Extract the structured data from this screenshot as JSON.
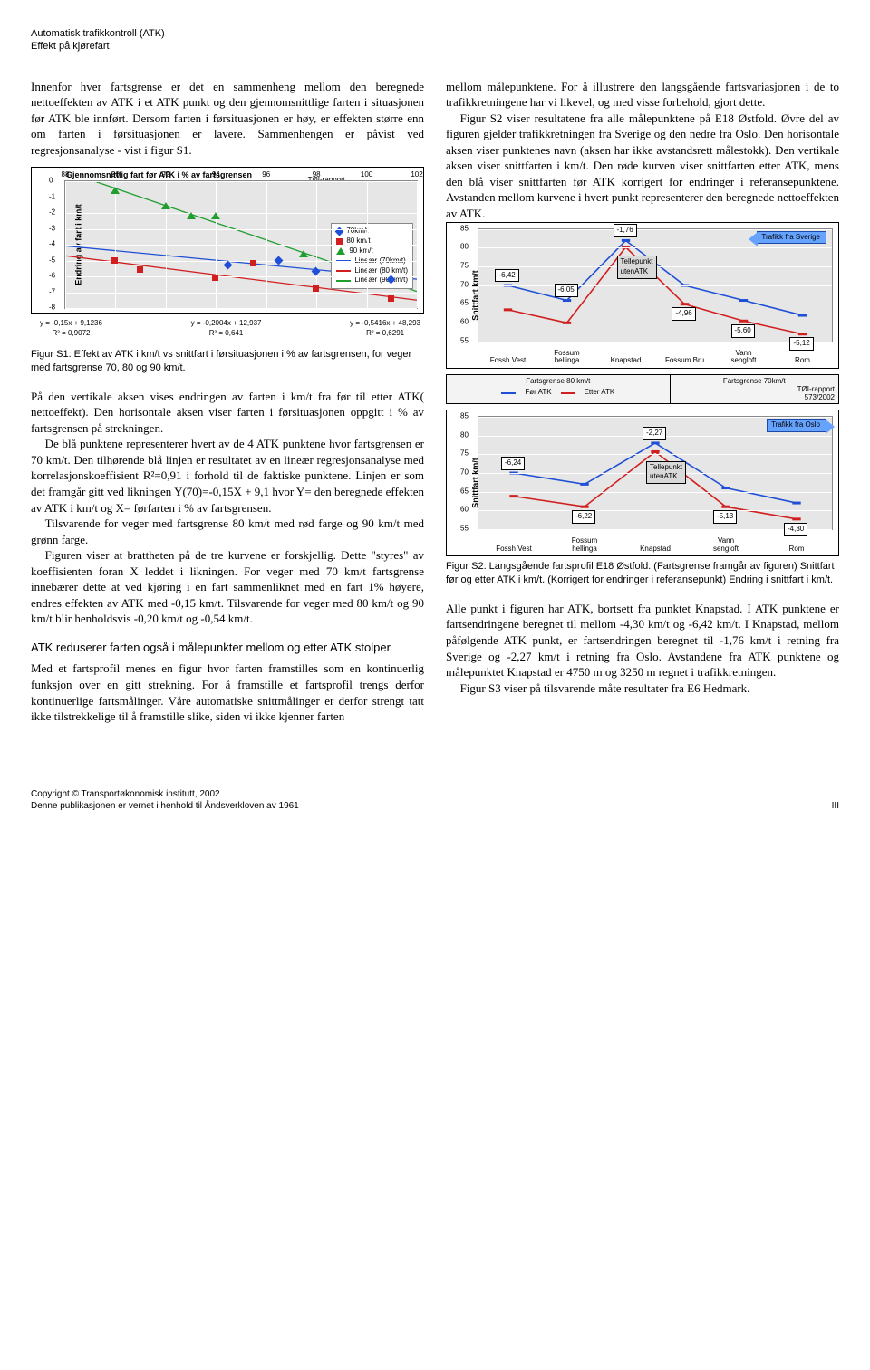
{
  "header": {
    "line1": "Automatisk trafikkontroll (ATK)",
    "line2": "Effekt på kjørefart"
  },
  "colors": {
    "blue": "#1f4fd6",
    "red": "#d11f1f",
    "green": "#1f9e2e",
    "plotbg": "#e6e6e6",
    "grid": "#ffffff",
    "callout_bg": "#66a3ff",
    "callout_border": "#1b4aa8"
  },
  "left": {
    "p1": "Innenfor hver fartsgrense er det en sammenheng mellom den beregnede nettoeffekten av ATK i et ATK punkt og den gjennomsnittlige farten i situasjonen før ATK ble innført. Dersom farten i førsituasjonen er høy, er effekten større enn om farten i førsituasjonen er lavere. Sammenhengen er påvist ved regresjonsanalyse - vist i figur S1.",
    "p2": "På den vertikale aksen vises endringen av farten i km/t fra før til etter ATK( nettoeffekt). Den horisontale aksen viser farten i førsituasjonen oppgitt i % av fartsgrensen på strekningen.",
    "p3": "De blå punktene representerer hvert av de 4 ATK punktene hvor fartsgrensen er 70 km/t. Den tilhørende blå linjen er resultatet av en lineær regresjonsanalyse med korrelasjonskoeffisient R²=0,91 i forhold til de faktiske punktene. Linjen er som det framgår gitt ved likningen Y(70)=-0,15X + 9,1 hvor Y= den beregnede effekten av ATK i km/t og X= førfarten i % av fartsgrensen.",
    "p4": "Tilsvarende for veger med fartsgrense 80 km/t med rød farge og 90 km/t med grønn farge.",
    "p5": "Figuren viser at brattheten på de tre kurvene er forskjellig. Dette \"styres\" av koeffisienten foran X leddet i likningen. For veger med 70 km/t fartsgrense innebærer dette at ved kjøring i en fart sammenliknet med en fart 1% høyere, endres effekten av ATK med -0,15 km/t. Tilsvarende for veger med 80 km/t og 90 km/t blir henholdsvis -0,20 km/t og -0,54 km/t.",
    "sectionHead": "ATK reduserer farten også i målepunkter mellom og etter ATK stolper",
    "p6": "Med et fartsprofil menes en figur hvor farten framstilles som en kontinuerlig funksjon over en gitt strekning. For å framstille et fartsprofil trengs derfor kontinuerlige fartsmålinger. Våre automatiske snittmålinger er derfor strengt tatt ikke tilstrekkelige til å framstille slike, siden vi ikke kjenner farten"
  },
  "right": {
    "p1": "mellom målepunktene. For å illustrere den langsgående fartsvariasjonen i de to trafikkretningene har vi likevel, og med visse forbehold, gjort dette.",
    "p2": "Figur S2 viser resultatene fra alle målepunktene på E18 Østfold. Øvre del av figuren gjelder trafikkretningen fra Sverige og den nedre fra Oslo. Den horisontale aksen viser punktenes navn (aksen har ikke avstandsrett målestokk). Den vertikale aksen viser snittfarten i km/t. Den røde kurven viser snittfarten etter ATK, mens den blå viser snittfarten før ATK korrigert for endringer i referansepunktene. Avstanden mellom kurvene i hvert punkt representerer den beregnede nettoeffekten av ATK.",
    "p3": "Alle punkt i figuren har ATK, bortsett fra punktet Knapstad. I ATK punktene er fartsendringene beregnet til mellom -4,30 km/t og -6,42 km/t. I Knapstad, mellom påfølgende ATK punkt, er fartsendringen beregnet til -1,76 km/t i retning fra Sverige og -2,27 km/t i retning fra Oslo. Avstandene fra ATK punktene og målepunktet Knapstad er 4750 m og 3250 m regnet i trafikkretningen.",
    "p4": "Figur S3 viser på tilsvarende måte resultater fra E6 Hedmark."
  },
  "figS1": {
    "title": "Gjennomsnittlig fart før ATK i % av fartsgrensen",
    "yaxis": "Endring av fart i km/t",
    "report": "TØI-rapport\n573/2002",
    "xticks": [
      88,
      90,
      92,
      94,
      96,
      98,
      100,
      102
    ],
    "yticks": [
      0,
      -1,
      -2,
      -3,
      -4,
      -5,
      -6,
      -7,
      -8
    ],
    "ylim": [
      -8,
      0
    ],
    "xlim": [
      88,
      102
    ],
    "legend": [
      {
        "marker": "diamond",
        "color": "#1f4fd6",
        "label": "70km/t"
      },
      {
        "marker": "square",
        "color": "#d11f1f",
        "label": "80 km/t"
      },
      {
        "marker": "triangle",
        "color": "#1f9e2e",
        "label": "90 km/t"
      },
      {
        "marker": "line",
        "color": "#1f4fd6",
        "label": "Lineær (70km/t)"
      },
      {
        "marker": "line",
        "color": "#d11f1f",
        "label": "Lineær (80 km/t)"
      },
      {
        "marker": "line",
        "color": "#1f9e2e",
        "label": "Lineær (90 km/t)"
      }
    ],
    "series": {
      "70": {
        "color": "#1f4fd6",
        "marker": "diamond",
        "points": [
          [
            94.5,
            -5.3
          ],
          [
            96.5,
            -5.0
          ],
          [
            98.0,
            -5.7
          ],
          [
            101.0,
            -6.2
          ]
        ]
      },
      "80": {
        "color": "#d11f1f",
        "marker": "square",
        "points": [
          [
            90.0,
            -5.0
          ],
          [
            91.0,
            -5.6
          ],
          [
            94.0,
            -6.1
          ],
          [
            95.5,
            -5.2
          ],
          [
            98.0,
            -6.8
          ],
          [
            101.0,
            -7.4
          ]
        ]
      },
      "90": {
        "color": "#1f9e2e",
        "marker": "triangle",
        "points": [
          [
            90.0,
            -0.6
          ],
          [
            92.0,
            -1.6
          ],
          [
            93.0,
            -2.2
          ],
          [
            94.0,
            -2.2
          ],
          [
            97.5,
            -4.6
          ]
        ]
      }
    },
    "lines": {
      "70": {
        "color": "#1f4fd6",
        "p1": [
          88,
          -4.08
        ],
        "p2": [
          102,
          -6.18
        ]
      },
      "80": {
        "color": "#d11f1f",
        "p1": [
          88,
          -4.7
        ],
        "p2": [
          102,
          -7.5
        ]
      },
      "90": {
        "color": "#1f9e2e",
        "p1": [
          88,
          0.63
        ],
        "p2": [
          102,
          -6.95
        ]
      }
    },
    "equations": [
      {
        "eq": "y = -0,15x + 9,1236",
        "r2": "R² = 0,9072"
      },
      {
        "eq": "y = -0,2004x + 12,937",
        "r2": "R² = 0,641"
      },
      {
        "eq": "y = -0,5416x + 48,293",
        "r2": "R² = 0,6291"
      }
    ],
    "caption": "Figur S1: Effekt av ATK i km/t vs snittfart i førsituasjonen i % av fartsgrensen, for veger med fartsgrense 70, 80 og 90 km/t."
  },
  "figS2": {
    "yaxis": "Snittfart km/t",
    "yticks": [
      55,
      60,
      65,
      70,
      75,
      80,
      85
    ],
    "ylim": [
      55,
      85
    ],
    "xcats": [
      "Fossh Vest",
      "Fossum\nhellinga",
      "Knapstad",
      "Fossum Bru",
      "Vann\nsengloft",
      "Rom"
    ],
    "xcats_bottom": [
      "Fossh Vest",
      "Fossum\nhellinga",
      "Knapstad",
      "Vann\nsengloft",
      "Rom"
    ],
    "report": "TØI-rapport\n573/2002",
    "top": {
      "title_arrow": "Trafikk fra Sverige",
      "for": {
        "color": "#1f4fd6",
        "points": [
          70,
          66,
          82,
          70,
          66,
          62
        ]
      },
      "etter": {
        "color": "#d11f1f",
        "points": [
          63.5,
          60,
          80.2,
          65,
          60.5,
          57
        ]
      },
      "labels": [
        {
          "i": 0,
          "text": "-6,42",
          "above": true
        },
        {
          "i": 1,
          "text": "-6,05",
          "above": true
        },
        {
          "i": 2,
          "text": "-1,76",
          "above": true
        },
        {
          "i": 3,
          "text": "-4,96",
          "above": false
        },
        {
          "i": 4,
          "text": "-5,60",
          "above": false
        },
        {
          "i": 5,
          "text": "-5,12",
          "above": false
        }
      ],
      "tellepunkt": "Tellepunkt\nutenATK"
    },
    "bottom": {
      "title_arrow": "Trafikk fra Oslo",
      "for": {
        "color": "#1f4fd6",
        "points": [
          70,
          67,
          78,
          66,
          62
        ]
      },
      "etter": {
        "color": "#d11f1f",
        "points": [
          63.8,
          61,
          75.7,
          61,
          57.7
        ]
      },
      "labels": [
        {
          "i": 0,
          "text": "-6,24",
          "above": true
        },
        {
          "i": 1,
          "text": "-6,22",
          "above": false
        },
        {
          "i": 2,
          "text": "-2,27",
          "above": true
        },
        {
          "i": 3,
          "text": "-5,13",
          "above": false
        },
        {
          "i": 4,
          "text": "-4,30",
          "above": false
        }
      ],
      "tellepunkt": "Tellepunkt\nutenATK"
    },
    "midbar": {
      "seg80": "Fartsgrense 80 km/t",
      "seg70": "Fartsgrense 70km/t",
      "legend": [
        {
          "color": "#1f4fd6",
          "label": "Før ATK"
        },
        {
          "color": "#d11f1f",
          "label": "Etter ATK"
        }
      ]
    },
    "caption": "Figur S2: Langsgående fartsprofil E18 Østfold. (Fartsgrense framgår av figuren) Snittfart før og etter ATK i km/t. (Korrigert for endringer i referansepunkt) Endring i snittfart i km/t."
  },
  "footer": {
    "line1": "Copyright © Transportøkonomisk institutt, 2002",
    "line2": "Denne publikasjonen er vernet i henhold til Åndsverkloven av 1961",
    "pageno": "III"
  }
}
